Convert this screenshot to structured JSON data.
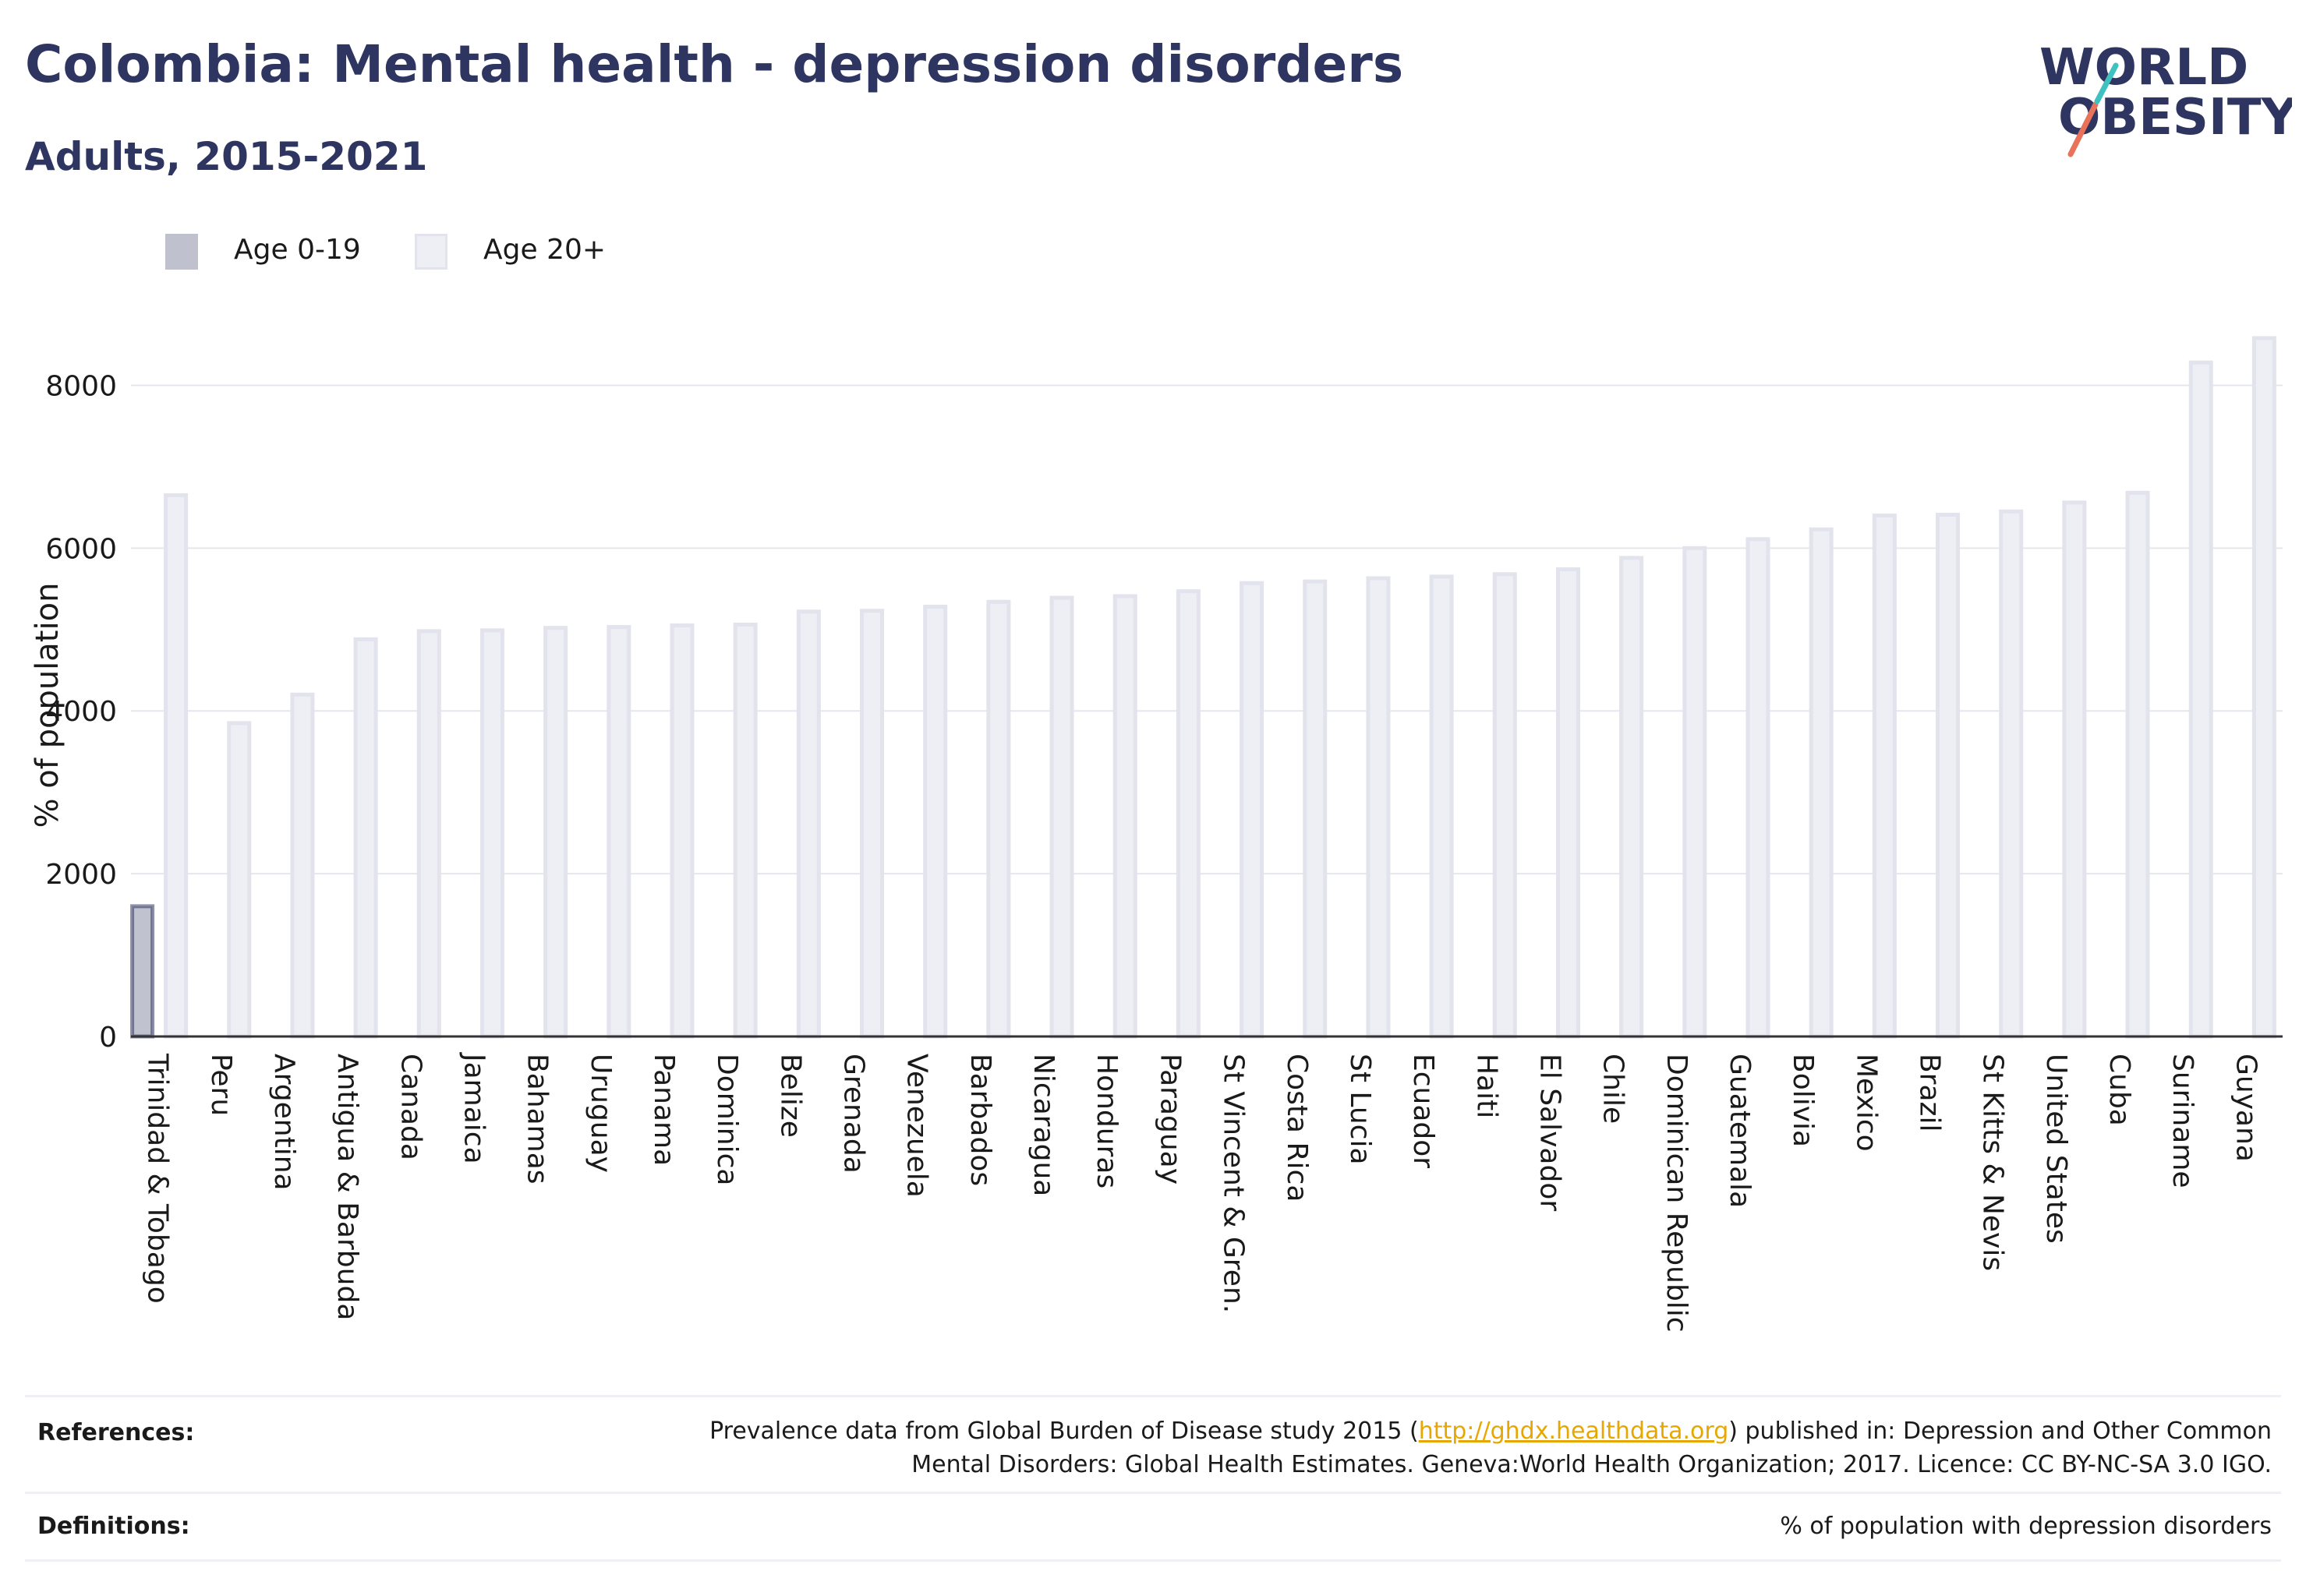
{
  "title": "Colombia: Mental health - depression disorders",
  "subtitle": "Adults, 2015-2021",
  "logo": {
    "line1": "WORLD",
    "line2": "OBESITY"
  },
  "legend": [
    {
      "label": "Age 0-19",
      "color": "#2e3560"
    },
    {
      "label": "Age 20+",
      "color": "#d4d6e2"
    }
  ],
  "references": {
    "label": "References:",
    "text_before": "Prevalence data from Global Burden of Disease study 2015 (",
    "link": "http://ghdx.healthdata.org",
    "text_after": ") published in: Depression and Other Common",
    "line2": "Mental Disorders: Global Health Estimates. Geneva:World Health Organization; 2017. Licence: CC BY-NC-SA 3.0 IGO."
  },
  "definitions": {
    "label": "Definitions:",
    "text": "% of population with depression disorders"
  },
  "chart_data": {
    "type": "bar",
    "ylabel": "% of population",
    "xlabel": "",
    "ylim": [
      0,
      9000
    ],
    "yticks": [
      0,
      2000,
      4000,
      6000,
      8000
    ],
    "grid": true,
    "legend_position": "top-left",
    "categories": [
      "Trinidad & Tobago",
      "Peru",
      "Argentina",
      "Antigua & Barbuda",
      "Canada",
      "Jamaica",
      "Bahamas",
      "Uruguay",
      "Panama",
      "Dominica",
      "Belize",
      "Grenada",
      "Venezuela",
      "Barbados",
      "Nicaragua",
      "Honduras",
      "Paraguay",
      "St Vincent & Gren.",
      "Costa Rica",
      "St Lucia",
      "Ecuador",
      "Haiti",
      "El Salvador",
      "Chile",
      "Dominican Republic",
      "Guatemala",
      "Bolivia",
      "Mexico",
      "Brazil",
      "St Kitts & Nevis",
      "United States",
      "Cuba",
      "Suriname",
      "Guyana"
    ],
    "series": [
      {
        "name": "Age 0-19",
        "color": "#2e3560",
        "values": [
          1600,
          null,
          null,
          null,
          null,
          null,
          null,
          null,
          null,
          null,
          null,
          null,
          null,
          null,
          null,
          null,
          null,
          null,
          null,
          null,
          null,
          null,
          null,
          null,
          null,
          null,
          null,
          null,
          null,
          null,
          null,
          null,
          null,
          null
        ]
      },
      {
        "name": "Age 20+",
        "color": "#d4d6e2",
        "values": [
          6650,
          3850,
          4200,
          4880,
          4980,
          4990,
          5020,
          5030,
          5050,
          5060,
          5220,
          5230,
          5280,
          5340,
          5390,
          5410,
          5470,
          5570,
          5590,
          5630,
          5650,
          5680,
          5740,
          5880,
          6000,
          6110,
          6230,
          6400,
          6410,
          6450,
          6560,
          6680,
          8280,
          8580
        ]
      }
    ]
  }
}
